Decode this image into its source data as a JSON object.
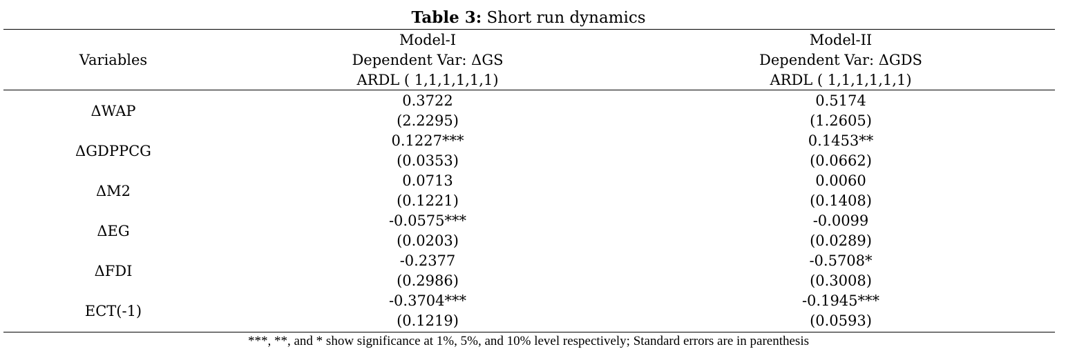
{
  "table": {
    "title_bold": "Table 3:",
    "title_rest": " Short run dynamics",
    "header": {
      "variables_label": "Variables",
      "model1": {
        "name": "Model-I",
        "dependent": "Dependent Var: ΔGS",
        "spec": "ARDL ( 1,1,1,1,1,1)"
      },
      "model2": {
        "name": "Model-II",
        "dependent": "Dependent Var: ΔGDS",
        "spec": "ARDL ( 1,1,1,1,1,1)"
      }
    },
    "rows": [
      {
        "variable": "ΔWAP",
        "m1_coef": "0.3722",
        "m1_se": "(2.2295)",
        "m2_coef": "0.5174",
        "m2_se": "(1.2605)"
      },
      {
        "variable": "ΔGDPPCG",
        "m1_coef": "0.1227***",
        "m1_se": "(0.0353)",
        "m2_coef": "0.1453**",
        "m2_se": "(0.0662)"
      },
      {
        "variable": "ΔM2",
        "m1_coef": "0.0713",
        "m1_se": "(0.1221)",
        "m2_coef": "0.0060",
        "m2_se": "(0.1408)"
      },
      {
        "variable": "ΔEG",
        "m1_coef": "-0.0575***",
        "m1_se": "(0.0203)",
        "m2_coef": "-0.0099",
        "m2_se": "(0.0289)"
      },
      {
        "variable": "ΔFDI",
        "m1_coef": "-0.2377",
        "m1_se": "(0.2986)",
        "m2_coef": "-0.5708*",
        "m2_se": "(0.3008)"
      },
      {
        "variable": "ECT(-1)",
        "m1_coef": "-0.3704***",
        "m1_se": "(0.1219)",
        "m2_coef": "-0.1945***",
        "m2_se": "(0.0593)"
      }
    ],
    "note": "***, **, and * show significance at 1%, 5%, and 10% level respectively; Standard errors are in parenthesis"
  }
}
